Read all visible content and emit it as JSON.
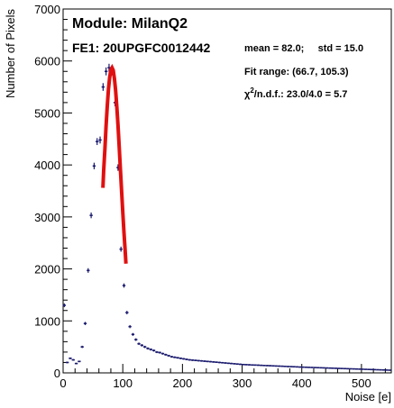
{
  "chart_data": {
    "type": "scatter",
    "title": "Module: MilanQ2",
    "subtitle": "FE1: 20UPGFC0012442",
    "xlabel": "Noise [e]",
    "ylabel": "Number of Pixels",
    "xlim": [
      0,
      550
    ],
    "ylim": [
      0,
      7000
    ],
    "xticks": [
      0,
      100,
      200,
      300,
      400,
      500
    ],
    "yticks": [
      0,
      1000,
      2000,
      3000,
      4000,
      5000,
      6000,
      7000
    ],
    "grid": false,
    "stats": {
      "mean_std": "mean = 82.0;     std = 15.0",
      "fit_range": "Fit range: (66.7, 105.3)",
      "chi2_prefix": "χ",
      "chi2_sup": "2",
      "chi2_rest": "/n.d.f.: 23.0/4.0 = 5.7"
    },
    "colors": {
      "points": "#1a1a6e",
      "fit": "#e01010"
    },
    "series": [
      {
        "type": "points",
        "x": [
          2,
          7,
          12,
          17,
          22,
          27,
          32,
          37,
          42,
          47,
          52,
          57,
          62,
          67,
          72,
          77,
          82,
          87,
          92,
          97,
          102,
          107,
          112,
          117,
          122,
          127,
          132,
          137,
          142,
          147,
          152,
          157,
          162,
          167,
          172,
          177,
          182,
          187,
          192,
          197,
          202,
          207,
          212,
          217,
          222,
          227,
          232,
          237,
          242,
          247,
          252,
          257,
          262,
          267,
          272,
          277,
          282,
          287,
          292,
          297,
          302,
          307,
          312,
          317,
          322,
          327,
          332,
          337,
          342,
          347,
          352,
          357,
          362,
          367,
          372,
          377,
          382,
          387,
          392,
          397,
          402,
          407,
          412,
          417,
          422,
          427,
          432,
          437,
          442,
          447,
          452,
          457,
          462,
          467,
          472,
          477,
          482,
          487,
          492,
          497,
          502,
          507,
          512,
          517,
          522,
          527,
          532,
          537,
          542,
          547
        ],
        "y": [
          1300,
          200,
          280,
          250,
          180,
          220,
          500,
          950,
          1970,
          3030,
          3980,
          4450,
          4480,
          5500,
          5800,
          5870,
          5800,
          5200,
          3950,
          2380,
          1680,
          1160,
          890,
          740,
          640,
          560,
          530,
          500,
          470,
          450,
          430,
          400,
          390,
          370,
          350,
          330,
          310,
          300,
          290,
          280,
          270,
          260,
          250,
          245,
          240,
          235,
          230,
          225,
          220,
          215,
          210,
          205,
          200,
          195,
          190,
          185,
          180,
          175,
          170,
          165,
          160,
          158,
          155,
          152,
          150,
          148,
          145,
          142,
          140,
          138,
          135,
          132,
          130,
          128,
          125,
          122,
          120,
          118,
          115,
          112,
          110,
          108,
          106,
          104,
          102,
          100,
          98,
          96,
          94,
          92,
          90,
          88,
          86,
          84,
          82,
          80,
          78,
          76,
          74,
          72,
          70,
          68,
          66,
          64,
          62,
          60,
          58,
          56,
          54,
          52
        ]
      },
      {
        "type": "fit",
        "x": [
          66.7,
          68,
          70,
          72,
          74,
          76,
          78,
          80,
          82,
          84,
          86,
          88,
          90,
          92,
          94,
          96,
          98,
          100,
          102,
          104,
          105.3
        ],
        "y": [
          3560,
          3900,
          4300,
          4750,
          5130,
          5460,
          5680,
          5830,
          5870,
          5820,
          5660,
          5430,
          5120,
          4760,
          4350,
          3920,
          3500,
          3090,
          2700,
          2350,
          2100
        ]
      }
    ]
  }
}
